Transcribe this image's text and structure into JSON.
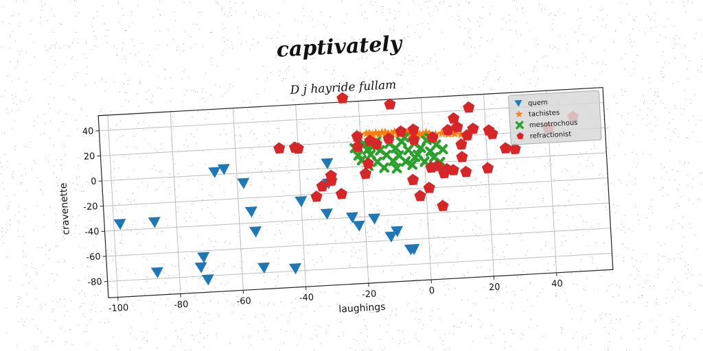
{
  "chart_data": {
    "type": "scatter",
    "title": "captivately",
    "subtitle": "D j hayride fullam",
    "xlabel": "laughings",
    "ylabel": "cravenette",
    "xlim": [
      -103,
      58
    ],
    "ylim": [
      -93,
      52
    ],
    "xticks": [
      -100,
      -80,
      -60,
      -40,
      -20,
      0,
      20,
      40
    ],
    "yticks": [
      -80,
      -60,
      -40,
      -20,
      0,
      20,
      40
    ],
    "grid": true,
    "legend_position": "top-right",
    "series": [
      {
        "name": "quem",
        "marker": "triangle-down",
        "color": "#1f77b4",
        "points": [
          [
            -98,
            -35
          ],
          [
            -87,
            -35
          ],
          [
            -87,
            -75
          ],
          [
            -73,
            -73
          ],
          [
            -72,
            -65
          ],
          [
            -71,
            -83
          ],
          [
            -67,
            2
          ],
          [
            -64,
            4
          ],
          [
            -58,
            -8
          ],
          [
            -56,
            -31
          ],
          [
            -55,
            -47
          ],
          [
            -53,
            -76
          ],
          [
            -43,
            -78
          ],
          [
            -40,
            -25
          ],
          [
            -32,
            -36
          ],
          [
            -31,
            -12
          ],
          [
            -31,
            4
          ],
          [
            -24,
            -40
          ],
          [
            -22,
            -47
          ],
          [
            -17,
            -42
          ],
          [
            -12,
            -57
          ],
          [
            -10,
            -53
          ],
          [
            -6,
            -68
          ],
          [
            -5,
            -68
          ]
        ]
      },
      {
        "name": "tachistes",
        "marker": "star",
        "color": "#ff7f0e",
        "points": [
          [
            -21,
            26
          ],
          [
            -20,
            25
          ],
          [
            -18,
            26
          ],
          [
            -17,
            26
          ],
          [
            -16,
            25
          ],
          [
            -15,
            26
          ],
          [
            -14,
            25
          ],
          [
            -13,
            26
          ],
          [
            -12,
            26
          ],
          [
            -11,
            25
          ],
          [
            -10,
            25
          ],
          [
            -9,
            26
          ],
          [
            -8,
            24
          ],
          [
            -7,
            25
          ],
          [
            -6,
            25
          ],
          [
            -5,
            25
          ],
          [
            -4,
            24
          ],
          [
            -3,
            23
          ],
          [
            -2,
            24
          ],
          [
            -1,
            23
          ],
          [
            0,
            23
          ],
          [
            1,
            24
          ],
          [
            2,
            23
          ],
          [
            4,
            22
          ],
          [
            6,
            23
          ],
          [
            8,
            22
          ],
          [
            10,
            22
          ],
          [
            12,
            21
          ],
          [
            14,
            21
          ]
        ]
      },
      {
        "name": "mesotrochous",
        "marker": "x",
        "color": "#2ca02c",
        "points": [
          [
            -22,
            15
          ],
          [
            -21,
            9
          ],
          [
            -20,
            5
          ],
          [
            -19,
            18
          ],
          [
            -18,
            0
          ],
          [
            -17,
            9
          ],
          [
            -16,
            16
          ],
          [
            -15,
            3
          ],
          [
            -14,
            12
          ],
          [
            -13,
            -2
          ],
          [
            -12,
            8
          ],
          [
            -11,
            17
          ],
          [
            -10,
            3
          ],
          [
            -9,
            13
          ],
          [
            -9,
            -3
          ],
          [
            -8,
            7
          ],
          [
            -7,
            18
          ],
          [
            -6,
            2
          ],
          [
            -5,
            11
          ],
          [
            -4,
            -1
          ],
          [
            -3,
            16
          ],
          [
            -2,
            7
          ],
          [
            -1,
            12
          ],
          [
            0,
            1
          ],
          [
            1,
            18
          ],
          [
            2,
            9
          ],
          [
            3,
            4
          ],
          [
            4,
            14
          ],
          [
            5,
            0
          ],
          [
            6,
            10
          ],
          [
            -15,
            19
          ],
          [
            -6,
            21
          ],
          [
            2,
            20
          ],
          [
            -18,
            13
          ],
          [
            -3,
            5
          ]
        ]
      },
      {
        "name": "refractionist",
        "marker": "pentagon",
        "color": "#d62728",
        "points": [
          [
            -46,
            18
          ],
          [
            -41,
            18
          ],
          [
            -40,
            17
          ],
          [
            -35,
            -22
          ],
          [
            -33,
            -14
          ],
          [
            -30,
            -10
          ],
          [
            -30,
            -6
          ],
          [
            -27,
            -21
          ],
          [
            -25,
            55
          ],
          [
            -21,
            16
          ],
          [
            -21,
            24
          ],
          [
            -19,
            -6
          ],
          [
            -18,
            2
          ],
          [
            -17,
            20
          ],
          [
            -15,
            17
          ],
          [
            -11,
            21
          ],
          [
            -10,
            48
          ],
          [
            -7,
            26
          ],
          [
            -4,
            -13
          ],
          [
            -3,
            27
          ],
          [
            -3,
            19
          ],
          [
            -2,
            -26
          ],
          [
            1,
            -20
          ],
          [
            2,
            -4
          ],
          [
            3,
            20
          ],
          [
            4,
            -3
          ],
          [
            5,
            -35
          ],
          [
            6,
            -9
          ],
          [
            7,
            -6
          ],
          [
            8,
            25
          ],
          [
            9,
            -7
          ],
          [
            10,
            34
          ],
          [
            11,
            27
          ],
          [
            12,
            3
          ],
          [
            12,
            13
          ],
          [
            13,
            -9
          ],
          [
            14,
            20
          ],
          [
            15,
            42
          ],
          [
            16,
            25
          ],
          [
            20,
            -7
          ],
          [
            21,
            23
          ],
          [
            22,
            20
          ],
          [
            26,
            8
          ],
          [
            29,
            7
          ],
          [
            40,
            22
          ],
          [
            48,
            30
          ]
        ]
      }
    ]
  }
}
